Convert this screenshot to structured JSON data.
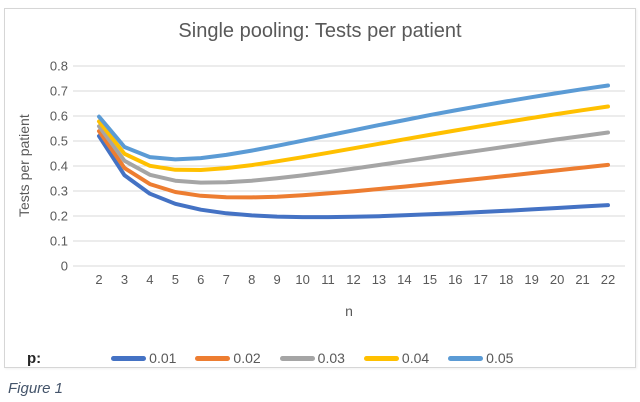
{
  "figure_caption": "Figure 1",
  "chart_data": {
    "type": "line",
    "title": "Single pooling: Tests per patient",
    "xlabel": "n",
    "ylabel": "Tests per patient",
    "ylim": [
      0,
      0.8
    ],
    "ytick_step": 0.1,
    "grid": true,
    "legend_position": "bottom",
    "legend_prefix": "p:",
    "categories": [
      2,
      3,
      4,
      5,
      6,
      7,
      8,
      9,
      10,
      11,
      12,
      13,
      14,
      15,
      16,
      17,
      18,
      19,
      20,
      21,
      22
    ],
    "series": [
      {
        "name": "0.01",
        "color": "#4472C4",
        "values": [
          0.5199,
          0.363,
          0.2894,
          0.249,
          0.2252,
          0.2108,
          0.2023,
          0.1976,
          0.1956,
          0.1956,
          0.1969,
          0.1994,
          0.2027,
          0.2066,
          0.211,
          0.2159,
          0.221,
          0.2265,
          0.2321,
          0.2379,
          0.2438
        ]
      },
      {
        "name": "0.02",
        "color": "#ED7D31",
        "values": [
          0.5396,
          0.3921,
          0.3276,
          0.2961,
          0.2808,
          0.2747,
          0.2742,
          0.2774,
          0.2829,
          0.2902,
          0.2986,
          0.3079,
          0.3178,
          0.3281,
          0.3387,
          0.3495,
          0.3604,
          0.3714,
          0.3824,
          0.3934,
          0.4043
        ]
      },
      {
        "name": "0.03",
        "color": "#A5A5A5",
        "values": [
          0.5591,
          0.4207,
          0.3647,
          0.3413,
          0.3337,
          0.3349,
          0.3413,
          0.3509,
          0.3626,
          0.3756,
          0.3895,
          0.4039,
          0.4186,
          0.4334,
          0.4482,
          0.463,
          0.4776,
          0.492,
          0.5062,
          0.5201,
          0.5338
        ]
      },
      {
        "name": "0.04",
        "color": "#FFC000",
        "values": [
          0.5784,
          0.4486,
          0.4007,
          0.3846,
          0.3839,
          0.3914,
          0.4036,
          0.4186,
          0.4352,
          0.4527,
          0.4706,
          0.4887,
          0.5068,
          0.5246,
          0.5421,
          0.5592,
          0.576,
          0.5922,
          0.608,
          0.6233,
          0.6381
        ]
      },
      {
        "name": "0.05",
        "color": "#5B9BD5",
        "values": [
          0.5975,
          0.476,
          0.4355,
          0.4262,
          0.4316,
          0.4445,
          0.4616,
          0.4809,
          0.5013,
          0.5221,
          0.543,
          0.5636,
          0.5838,
          0.6034,
          0.6224,
          0.6407,
          0.6583,
          0.6753,
          0.6915,
          0.7071,
          0.7219
        ]
      }
    ]
  }
}
